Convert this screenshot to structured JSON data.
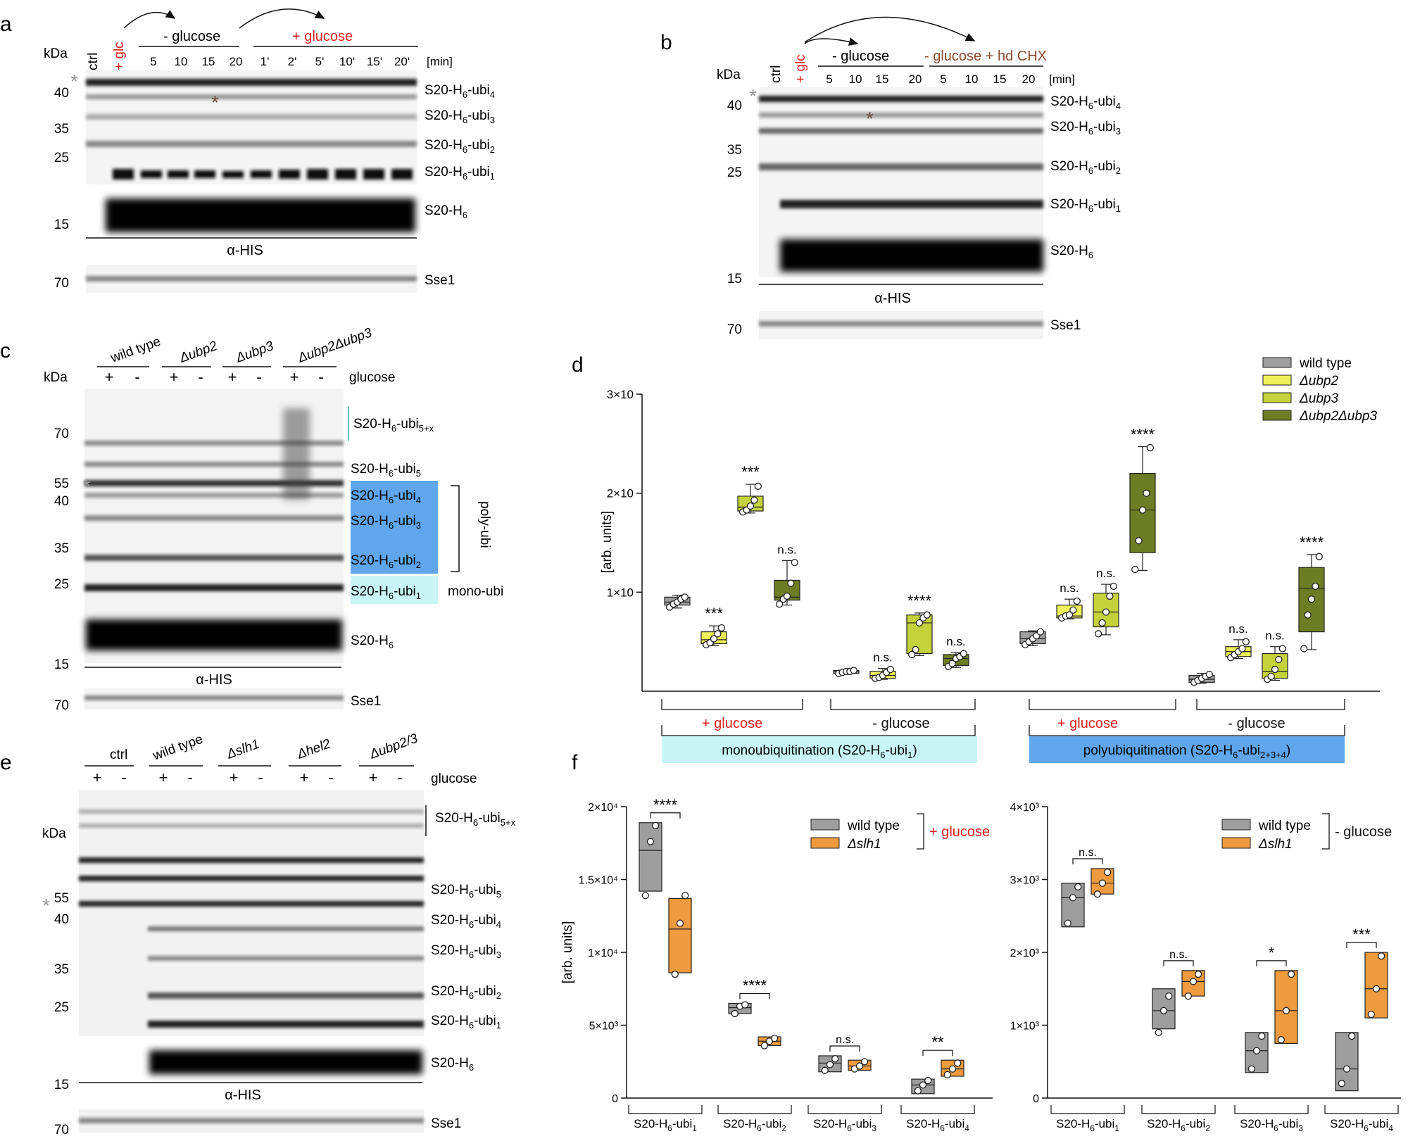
{
  "panels": {
    "a": {
      "letter": "a",
      "kda": "kDa",
      "lane_ctrl": "ctrl",
      "lane_glc": "+ glc",
      "group_minus": "- glucose",
      "group_plus": "+ glucose",
      "unit": "[min]",
      "times": [
        "5",
        "10",
        "15",
        "20",
        "1'",
        "2'",
        "5'",
        "10'",
        "15'",
        "20'"
      ],
      "markers": [
        "40",
        "35",
        "25",
        "15"
      ],
      "marker70": "70",
      "bands": [
        "S20-H6-ubi4",
        "S20-H6-ubi3",
        "S20-H6-ubi2",
        "S20-H6-ubi1",
        "S20-H6"
      ],
      "antibody": "α-HIS",
      "loading": "Sse1"
    },
    "b": {
      "letter": "b",
      "kda": "kDa",
      "lane_ctrl": "ctrl",
      "lane_glc": "+ glc",
      "group_minus": "- glucose",
      "group_chx": "- glucose + hd CHX",
      "unit": "[min]",
      "times": [
        "5",
        "10",
        "15",
        "20",
        "5",
        "10",
        "15",
        "20"
      ],
      "markers": [
        "40",
        "35",
        "25",
        "15"
      ],
      "marker70": "70",
      "bands": [
        "S20-H6-ubi4",
        "S20-H6-ubi3",
        "S20-H6-ubi2",
        "S20-H6-ubi1",
        "S20-H6"
      ],
      "antibody": "α-HIS",
      "loading": "Sse1"
    },
    "c": {
      "letter": "c",
      "kda": "kDa",
      "strains": [
        "wild type",
        "Δubp2",
        "Δubp3",
        "Δubp2Δubp3"
      ],
      "signs": [
        "+",
        "-",
        "+",
        "-",
        "+",
        "-",
        "+",
        "-"
      ],
      "glucose": "glucose",
      "markers": [
        "70",
        "55",
        "40",
        "35",
        "25",
        "15"
      ],
      "marker70": "70",
      "bands": [
        "S20-H6-ubi5+x",
        "S20-H6-ubi5",
        "S20-H6-ubi4",
        "S20-H6-ubi3",
        "S20-H6-ubi2",
        "S20-H6-ubi1",
        "S20-H6"
      ],
      "poly": "poly-ubi",
      "mono": "mono-ubi",
      "antibody": "α-HIS",
      "loading": "Sse1"
    },
    "e": {
      "letter": "e",
      "kda": "kDa",
      "strains": [
        "ctrl",
        "wild type",
        "Δslh1",
        "Δhel2",
        "Δubp2/3"
      ],
      "signs": [
        "+",
        "-",
        "+",
        "-",
        "+",
        "-",
        "+",
        "-",
        "+",
        "-"
      ],
      "glucose": "glucose",
      "markers": [
        "55",
        "40",
        "35",
        "25",
        "15"
      ],
      "marker70": "70",
      "bands": [
        "S20-H6-ubi5+x",
        "S20-H6-ubi5",
        "S20-H6-ubi4",
        "S20-H6-ubi3",
        "S20-H6-ubi2",
        "S20-H6-ubi1",
        "S20-H6"
      ],
      "antibody": "α-HIS",
      "loading": "Sse1"
    },
    "d": {
      "letter": "d"
    },
    "f": {
      "letter": "f"
    }
  },
  "chart_data": [
    {
      "type": "box",
      "panel": "d",
      "ylabel": "[arb. units]",
      "yticks": [
        "1×10",
        "2×10",
        "3×10"
      ],
      "ylim": [
        0,
        30000
      ],
      "legend": [
        "wild type",
        "Δubp2",
        "Δubp3",
        "Δubp2Δubp3"
      ],
      "colors": [
        "#9e9e9e",
        "#eef25a",
        "#c4d23c",
        "#6d7d24"
      ],
      "conditions": [
        "+ glucose",
        "- glucose",
        "+ glucose",
        "- glucose"
      ],
      "categories": [
        "monoubiquitination (S20-H6-ubi1)",
        "polyubiquitination (S20-H6-ubi2+3+4)"
      ],
      "groups": [
        {
          "boxes": [
            {
              "q1": 8700,
              "med": 9000,
              "q3": 9500,
              "min": 8400,
              "max": 9700,
              "pts": [
                8500,
                8800,
                9000,
                9300,
                9500
              ],
              "sig": ""
            },
            {
              "q1": 4800,
              "med": 5200,
              "q3": 6000,
              "min": 4600,
              "max": 6600,
              "pts": [
                4700,
                4900,
                5300,
                5800,
                6400
              ],
              "sig": "***"
            },
            {
              "q1": 18200,
              "med": 18600,
              "q3": 19700,
              "min": 18000,
              "max": 20900,
              "pts": [
                18100,
                18300,
                18700,
                19300,
                20700
              ],
              "sig": "***"
            },
            {
              "q1": 9200,
              "med": 9500,
              "q3": 11200,
              "min": 8700,
              "max": 13200,
              "pts": [
                8800,
                9300,
                9600,
                10900,
                13000
              ],
              "sig": "n.s."
            }
          ]
        },
        {
          "boxes": [
            {
              "q1": 1800,
              "med": 2000,
              "q3": 2100,
              "min": 1700,
              "max": 2200,
              "pts": [
                1800,
                1900,
                2000,
                2000,
                2100
              ],
              "sig": ""
            },
            {
              "q1": 1300,
              "med": 1600,
              "q3": 2000,
              "min": 1200,
              "max": 2300,
              "pts": [
                1300,
                1400,
                1600,
                1900,
                2200
              ],
              "sig": "n.s."
            },
            {
              "q1": 3800,
              "med": 6900,
              "q3": 7700,
              "min": 3600,
              "max": 7900,
              "pts": [
                3700,
                4200,
                6900,
                7400,
                7700
              ],
              "sig": "****"
            },
            {
              "q1": 2600,
              "med": 3300,
              "q3": 3700,
              "min": 2400,
              "max": 3900,
              "pts": [
                2500,
                2800,
                3300,
                3500,
                3800
              ],
              "sig": "n.s."
            }
          ]
        },
        {
          "boxes": [
            {
              "q1": 4800,
              "med": 5300,
              "q3": 6000,
              "min": 4600,
              "max": 6100,
              "pts": [
                4700,
                5000,
                5300,
                5600,
                6000
              ],
              "sig": ""
            },
            {
              "q1": 7400,
              "med": 7600,
              "q3": 8700,
              "min": 7300,
              "max": 9300,
              "pts": [
                7400,
                7600,
                7700,
                8200,
                9100
              ],
              "sig": "n.s."
            },
            {
              "q1": 6500,
              "med": 8000,
              "q3": 9900,
              "min": 5700,
              "max": 10800,
              "pts": [
                5800,
                6900,
                8000,
                9600,
                10600
              ],
              "sig": "n.s."
            },
            {
              "q1": 14000,
              "med": 18300,
              "q3": 22000,
              "min": 12200,
              "max": 24700,
              "pts": [
                12300,
                15200,
                18300,
                20000,
                24600
              ],
              "sig": "****"
            }
          ]
        },
        {
          "boxes": [
            {
              "q1": 900,
              "med": 1200,
              "q3": 1600,
              "min": 800,
              "max": 1800,
              "pts": [
                900,
                1100,
                1300,
                1500,
                1700
              ],
              "sig": ""
            },
            {
              "q1": 3500,
              "med": 4000,
              "q3": 4500,
              "min": 3300,
              "max": 5200,
              "pts": [
                3400,
                3700,
                4000,
                4300,
                5000
              ],
              "sig": "n.s."
            },
            {
              "q1": 1300,
              "med": 2000,
              "q3": 3800,
              "min": 1100,
              "max": 4500,
              "pts": [
                1200,
                1500,
                2200,
                3200,
                4300
              ],
              "sig": "n.s."
            },
            {
              "q1": 6000,
              "med": 10400,
              "q3": 12500,
              "min": 4200,
              "max": 13800,
              "pts": [
                4300,
                7700,
                9300,
                10600,
                13600
              ],
              "sig": "****"
            }
          ]
        }
      ]
    },
    {
      "type": "box",
      "panel": "f-left",
      "ylabel": "[arb. units]",
      "ylim": [
        0,
        20000
      ],
      "yticks": [
        "0",
        "5×10³",
        "1×10⁴",
        "1.5×10⁴",
        "2×10⁴"
      ],
      "legend": [
        "wild type",
        "Δslh1"
      ],
      "condition": "+ glucose",
      "colors": [
        "#9e9e9e",
        "#ee9a3e"
      ],
      "categories": [
        "S20-H6-ubi1",
        "S20-H6-ubi2",
        "S20-H6-ubi3",
        "S20-H6-ubi4"
      ],
      "sig": [
        "****",
        "****",
        "n.s.",
        "**"
      ],
      "pairs": [
        [
          {
            "q1": 14200,
            "med": 17000,
            "q3": 18900,
            "pts": [
              13900,
              17600,
              18700
            ]
          },
          {
            "q1": 8600,
            "med": 11600,
            "q3": 13700,
            "pts": [
              8500,
              12000,
              13900
            ]
          }
        ],
        [
          {
            "q1": 5800,
            "med": 6200,
            "q3": 6500,
            "pts": [
              5800,
              6300,
              6400
            ]
          },
          {
            "q1": 3600,
            "med": 3900,
            "q3": 4200,
            "pts": [
              3600,
              3900,
              4100
            ]
          }
        ],
        [
          {
            "q1": 1800,
            "med": 2400,
            "q3": 2900,
            "pts": [
              1900,
              2300,
              2700
            ]
          },
          {
            "q1": 1900,
            "med": 2200,
            "q3": 2600,
            "pts": [
              2000,
              2200,
              2500
            ]
          }
        ],
        [
          {
            "q1": 300,
            "med": 900,
            "q3": 1300,
            "pts": [
              500,
              900,
              1200
            ]
          },
          {
            "q1": 1500,
            "med": 2000,
            "q3": 2600,
            "pts": [
              1600,
              2000,
              2400
            ]
          }
        ]
      ]
    },
    {
      "type": "box",
      "panel": "f-right",
      "ylim": [
        0,
        4000
      ],
      "yticks": [
        "0",
        "1×10³",
        "2×10³",
        "3×10³",
        "4×10³"
      ],
      "legend": [
        "wild type",
        "Δslh1"
      ],
      "condition": "- glucose",
      "colors": [
        "#9e9e9e",
        "#ee9a3e"
      ],
      "categories": [
        "S20-H6-ubi1",
        "S20-H6-ubi2",
        "S20-H6-ubi3",
        "S20-H6-ubi4"
      ],
      "sig": [
        "n.s.",
        "n.s.",
        "*",
        "***"
      ],
      "pairs": [
        [
          {
            "q1": 2350,
            "med": 2750,
            "q3": 2950,
            "pts": [
              2400,
              2750,
              2900
            ]
          },
          {
            "q1": 2800,
            "med": 2950,
            "q3": 3150,
            "pts": [
              2800,
              2950,
              3100
            ]
          }
        ],
        [
          {
            "q1": 950,
            "med": 1200,
            "q3": 1500,
            "pts": [
              900,
              1200,
              1400
            ]
          },
          {
            "q1": 1400,
            "med": 1600,
            "q3": 1750,
            "pts": [
              1400,
              1600,
              1700
            ]
          }
        ],
        [
          {
            "q1": 350,
            "med": 650,
            "q3": 900,
            "pts": [
              400,
              650,
              850
            ]
          },
          {
            "q1": 750,
            "med": 1200,
            "q3": 1750,
            "pts": [
              800,
              1200,
              1700
            ]
          }
        ],
        [
          {
            "q1": 100,
            "med": 400,
            "q3": 900,
            "pts": [
              200,
              400,
              850
            ]
          },
          {
            "q1": 1100,
            "med": 1500,
            "q3": 2000,
            "pts": [
              1150,
              1500,
              1950
            ]
          }
        ]
      ]
    }
  ]
}
